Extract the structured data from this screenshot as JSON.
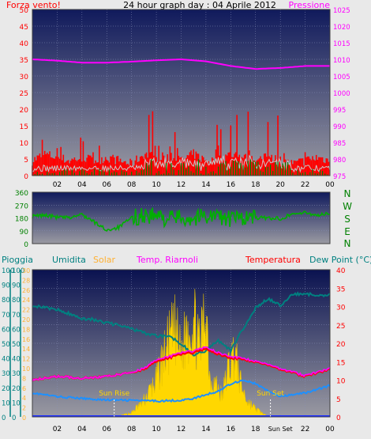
{
  "title": "24 hour graph day : 04 Aprile 2012",
  "colors": {
    "wind": "#ff0000",
    "gust_grey": "#c8c8c8",
    "gust_green": "#008000",
    "pressure": "#ff00ff",
    "direction": "#00b000",
    "rain": "#008080",
    "humidity": "#008080",
    "solar": "#ffd700",
    "heat_index": "#ff00ff",
    "temperature": "#ff0000",
    "dewpoint": "#1e90ff",
    "plot_top": "#101a5c",
    "plot_bottom": "#9a9aa2"
  },
  "chart_data": [
    {
      "type": "line",
      "id": "wind_pressure",
      "left_label": "Forza vento!",
      "right_label": "Pressione",
      "x_ticks": [
        "02",
        "04",
        "06",
        "08",
        "10",
        "12",
        "14",
        "16",
        "18",
        "20",
        "22",
        "00"
      ],
      "y_left_ticks": [
        0,
        5,
        10,
        15,
        20,
        25,
        30,
        35,
        40,
        45,
        50
      ],
      "y_left_range": [
        0,
        50
      ],
      "y_right_ticks": [
        975,
        980,
        985,
        990,
        995,
        1000,
        1005,
        1010,
        1015,
        1020,
        1025
      ],
      "y_right_range": [
        975,
        1025
      ],
      "series": [
        {
          "key": "wind_speed",
          "x": [
            0,
            1,
            2,
            3,
            4,
            5,
            6,
            7,
            8,
            9,
            10,
            11,
            12,
            13,
            14,
            15,
            16,
            17,
            18,
            19,
            20,
            21,
            22,
            23,
            24
          ],
          "y": [
            3,
            5,
            4,
            3,
            4,
            3,
            4,
            3,
            2,
            5,
            4,
            4,
            3,
            5,
            3,
            3,
            5,
            4,
            3,
            4,
            3,
            2,
            3,
            4,
            3
          ]
        },
        {
          "key": "pressure",
          "x": [
            0,
            2,
            4,
            6,
            8,
            10,
            12,
            14,
            16,
            18,
            20,
            22,
            24
          ],
          "y": [
            1010,
            1009.6,
            1009,
            1009,
            1009.3,
            1009.7,
            1010,
            1009.4,
            1008,
            1007.1,
            1007.4,
            1008,
            1008
          ]
        }
      ]
    },
    {
      "type": "line",
      "id": "wind_direction",
      "y_ticks": [
        0,
        90,
        180,
        270,
        360
      ],
      "y_range": [
        0,
        360
      ],
      "compass_labels": [
        "N",
        "W",
        "S",
        "E",
        "N"
      ],
      "series": [
        {
          "key": "direction",
          "x": [
            0,
            1,
            2,
            3,
            4,
            5,
            6,
            7,
            8,
            9,
            10,
            11,
            12,
            13,
            14,
            15,
            16,
            17,
            18,
            19,
            20,
            21,
            22,
            23,
            24
          ],
          "y": [
            190,
            200,
            185,
            180,
            205,
            150,
            95,
            115,
            180,
            200,
            190,
            175,
            185,
            175,
            200,
            190,
            170,
            185,
            180,
            180,
            175,
            210,
            215,
            200,
            210
          ]
        }
      ]
    },
    {
      "type": "line",
      "id": "temperature_group",
      "legend": [
        "Pioggia",
        "Umidita",
        "Solar",
        "Temp. Riarnoli",
        "Temperatura",
        "Dew Point (°C)"
      ],
      "x_ticks": [
        "02",
        "04",
        "06",
        "08",
        "10",
        "12",
        "14",
        "16",
        "18",
        "Sun Set",
        "22",
        "00"
      ],
      "rain_ticks": [
        0,
        10,
        20,
        30,
        40,
        50,
        60,
        70,
        80,
        90,
        100
      ],
      "solar_ticks": [
        0,
        2,
        4,
        6,
        8,
        10,
        12,
        14,
        16,
        18,
        20,
        22,
        24,
        26,
        28,
        30
      ],
      "humidity_ticks": [
        0,
        10,
        20,
        30,
        40,
        50,
        60,
        70,
        80,
        90,
        100
      ],
      "temp_ticks": [
        0,
        5,
        10,
        15,
        20,
        25,
        30,
        35,
        40
      ],
      "temp_range": [
        0,
        40
      ],
      "annotations": [
        "Sun Rise",
        "Sun Set"
      ],
      "series": [
        {
          "key": "humidity",
          "x": [
            0,
            1,
            2,
            3,
            4,
            5,
            6,
            7,
            8,
            9,
            10,
            11,
            12,
            13,
            14,
            15,
            16,
            17,
            18,
            19,
            20,
            21,
            22,
            23,
            24
          ],
          "y": [
            76,
            74,
            73,
            70,
            67,
            66,
            64,
            62,
            60,
            57,
            55,
            55,
            50,
            42,
            45,
            52,
            45,
            60,
            74,
            80,
            76,
            83,
            84,
            82,
            83
          ]
        },
        {
          "key": "temperature",
          "x": [
            0,
            2,
            4,
            6,
            8,
            9,
            10,
            11,
            12,
            13,
            14,
            15,
            16,
            17,
            18,
            19,
            20,
            21,
            22,
            23,
            24
          ],
          "y": [
            10,
            11,
            10.5,
            11,
            12,
            13,
            15,
            16,
            17,
            17.5,
            18.5,
            17,
            16,
            15.5,
            15,
            14,
            13,
            12,
            11,
            12,
            13
          ]
        },
        {
          "key": "heat_index",
          "x": [
            0,
            2,
            4,
            6,
            8,
            9,
            10,
            11,
            12,
            13,
            14,
            15,
            16,
            17,
            18,
            19,
            20,
            21,
            22,
            23,
            24
          ],
          "y": [
            10,
            11,
            10.5,
            11,
            12,
            13.3,
            15.4,
            16.4,
            17.4,
            18,
            19,
            17.4,
            16.4,
            15.8,
            15.2,
            14.2,
            13.2,
            12.2,
            11.2,
            12.2,
            13.2
          ]
        },
        {
          "key": "dewpoint",
          "x": [
            0,
            2,
            4,
            6,
            8,
            10,
            12,
            13,
            14,
            15,
            16,
            17,
            18,
            19,
            20,
            22,
            23,
            24
          ],
          "y": [
            6.5,
            5.5,
            5,
            4.6,
            4.5,
            4.3,
            4.5,
            5,
            6,
            7,
            9,
            10,
            9,
            7,
            5.5,
            6.5,
            7.5,
            8.5
          ]
        },
        {
          "key": "solar",
          "x": [
            6.5,
            7,
            8,
            9,
            10,
            10.5,
            11,
            11.5,
            12,
            12.5,
            13,
            13.5,
            14,
            14.3,
            14.8,
            15.3,
            15.8,
            16.3,
            16.8,
            17.3,
            18,
            18.5,
            19
          ],
          "y": [
            0,
            0.2,
            1,
            4,
            9,
            14,
            18,
            21,
            15,
            22,
            24,
            16,
            28,
            10,
            8,
            5,
            12,
            16,
            8,
            4,
            2,
            1,
            0
          ]
        }
      ]
    }
  ]
}
